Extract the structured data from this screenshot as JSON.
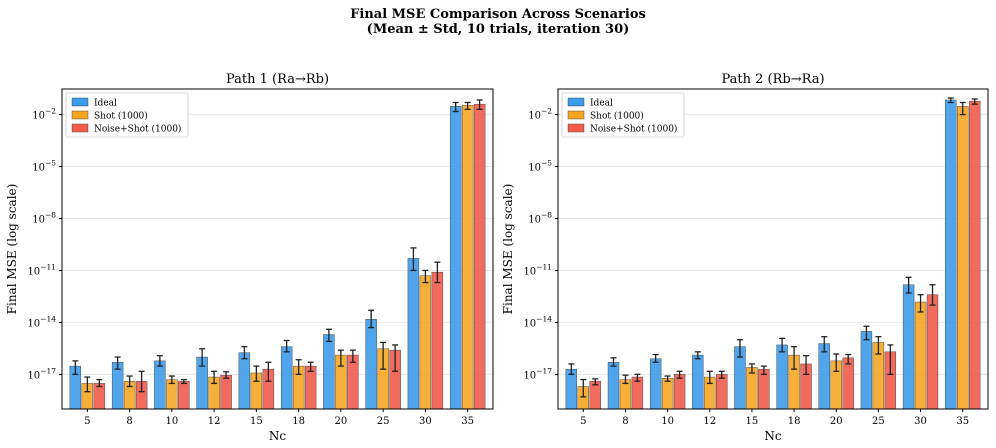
{
  "figure": {
    "title_line1": "Final MSE Comparison Across Scenarios",
    "title_line2": "(Mean ± Std, 10 trials, iteration 30)"
  },
  "colors": {
    "ideal": "#3d9be9",
    "shot": "#f5a623",
    "noise": "#ef5b4c",
    "grid": "#e6e6e6",
    "err": "#222222"
  },
  "chart_data": [
    {
      "type": "bar",
      "title": "Path 1 (Ra→Rb)",
      "xlabel": "Nc",
      "ylabel": "Final MSE (log scale)",
      "yscale": "log",
      "ylim": [
        1e-19,
        0.3
      ],
      "yticks": [
        {
          "value": 1e-17,
          "base": "10",
          "exp": "−17"
        },
        {
          "value": 1e-14,
          "base": "10",
          "exp": "−14"
        },
        {
          "value": 1e-11,
          "base": "10",
          "exp": "−11"
        },
        {
          "value": 1e-08,
          "base": "10",
          "exp": "−8"
        },
        {
          "value": 1e-05,
          "base": "10",
          "exp": "−5"
        },
        {
          "value": 0.01,
          "base": "10",
          "exp": "−2"
        }
      ],
      "grid": true,
      "legend": "top-left",
      "categories": [
        "5",
        "8",
        "10",
        "12",
        "15",
        "18",
        "20",
        "25",
        "30",
        "35"
      ],
      "series": [
        {
          "name": "Ideal",
          "values": [
            3e-17,
            5e-17,
            6e-17,
            1e-16,
            1.8e-16,
            4e-16,
            2e-15,
            1.5e-14,
            5e-11,
            0.03
          ],
          "err_low": [
            1e-17,
            2e-17,
            3e-17,
            3e-17,
            8e-17,
            2e-16,
            8e-16,
            5e-15,
            1e-11,
            0.015
          ],
          "err_high": [
            6e-17,
            1e-16,
            1.2e-16,
            3e-16,
            4e-16,
            9e-16,
            4e-15,
            5e-14,
            2e-10,
            0.05
          ]
        },
        {
          "name": "Shot (1000)",
          "values": [
            3e-18,
            4e-18,
            5e-18,
            7e-18,
            1.2e-17,
            3e-17,
            1.3e-16,
            3e-16,
            5e-12,
            0.035
          ],
          "err_low": [
            1e-18,
            2e-18,
            3e-18,
            3e-18,
            4e-18,
            1e-17,
            3e-17,
            2e-17,
            2e-12,
            0.02
          ],
          "err_high": [
            7e-18,
            8e-18,
            8e-18,
            1.5e-17,
            3e-17,
            7e-17,
            2.5e-16,
            7e-16,
            1e-11,
            0.05
          ]
        },
        {
          "name": "Noise+Shot (1000)",
          "values": [
            3e-18,
            4e-18,
            4e-18,
            9e-18,
            2e-17,
            3e-17,
            1.3e-16,
            2.5e-16,
            8e-12,
            0.04
          ],
          "err_low": [
            2e-18,
            1e-18,
            3e-18,
            6e-18,
            4e-18,
            1.5e-17,
            5e-17,
            1.5e-17,
            2e-12,
            0.02
          ],
          "err_high": [
            5e-18,
            1.5e-17,
            5e-18,
            1.4e-17,
            5e-17,
            5e-17,
            2.5e-16,
            5e-16,
            3e-11,
            0.07
          ]
        }
      ]
    },
    {
      "type": "bar",
      "title": "Path 2 (Rb→Ra)",
      "xlabel": "Nc",
      "ylabel": "Final MSE (log scale)",
      "yscale": "log",
      "ylim": [
        1e-19,
        0.3
      ],
      "yticks": [
        {
          "value": 1e-17,
          "base": "10",
          "exp": "−17"
        },
        {
          "value": 1e-14,
          "base": "10",
          "exp": "−14"
        },
        {
          "value": 1e-11,
          "base": "10",
          "exp": "−11"
        },
        {
          "value": 1e-08,
          "base": "10",
          "exp": "−8"
        },
        {
          "value": 1e-05,
          "base": "10",
          "exp": "−5"
        },
        {
          "value": 0.01,
          "base": "10",
          "exp": "−2"
        }
      ],
      "grid": true,
      "legend": "top-left",
      "categories": [
        "5",
        "8",
        "10",
        "12",
        "15",
        "18",
        "20",
        "25",
        "30",
        "35"
      ],
      "series": [
        {
          "name": "Ideal",
          "values": [
            2e-17,
            5e-17,
            8e-17,
            1.3e-16,
            4e-16,
            5e-16,
            6e-16,
            3e-15,
            1.5e-12,
            0.07
          ],
          "err_low": [
            1e-17,
            3e-17,
            5e-17,
            8e-17,
            1e-16,
            2e-16,
            2e-16,
            1e-15,
            5e-13,
            0.05
          ],
          "err_high": [
            4e-17,
            9e-17,
            1.4e-16,
            2e-16,
            1e-15,
            1.2e-15,
            1.5e-15,
            6e-15,
            4e-12,
            0.09
          ]
        },
        {
          "name": "Shot (1000)",
          "values": [
            2e-18,
            5e-18,
            6e-18,
            7e-18,
            2.5e-17,
            1.3e-16,
            6e-17,
            7e-16,
            1.5e-13,
            0.03
          ],
          "err_low": [
            5e-19,
            3e-18,
            4e-18,
            3e-18,
            1.2e-17,
            2e-17,
            1.5e-17,
            1.5e-16,
            4e-14,
            0.01
          ],
          "err_high": [
            5e-18,
            9e-18,
            8e-18,
            1.5e-17,
            4e-17,
            4e-16,
            1.5e-16,
            1.5e-15,
            4e-13,
            0.05
          ]
        },
        {
          "name": "Noise+Shot (1000)",
          "values": [
            4e-18,
            7e-18,
            1e-17,
            1e-17,
            2e-17,
            4e-17,
            9e-17,
            2e-16,
            4e-13,
            0.06
          ],
          "err_low": [
            2.5e-18,
            4e-18,
            6e-18,
            6e-18,
            1e-17,
            1e-17,
            4e-17,
            1e-17,
            1e-13,
            0.04
          ],
          "err_high": [
            5.5e-18,
            1e-17,
            1.5e-17,
            1.5e-17,
            3e-17,
            1.2e-16,
            1.4e-16,
            5e-16,
            1.5e-12,
            0.08
          ]
        }
      ]
    }
  ]
}
